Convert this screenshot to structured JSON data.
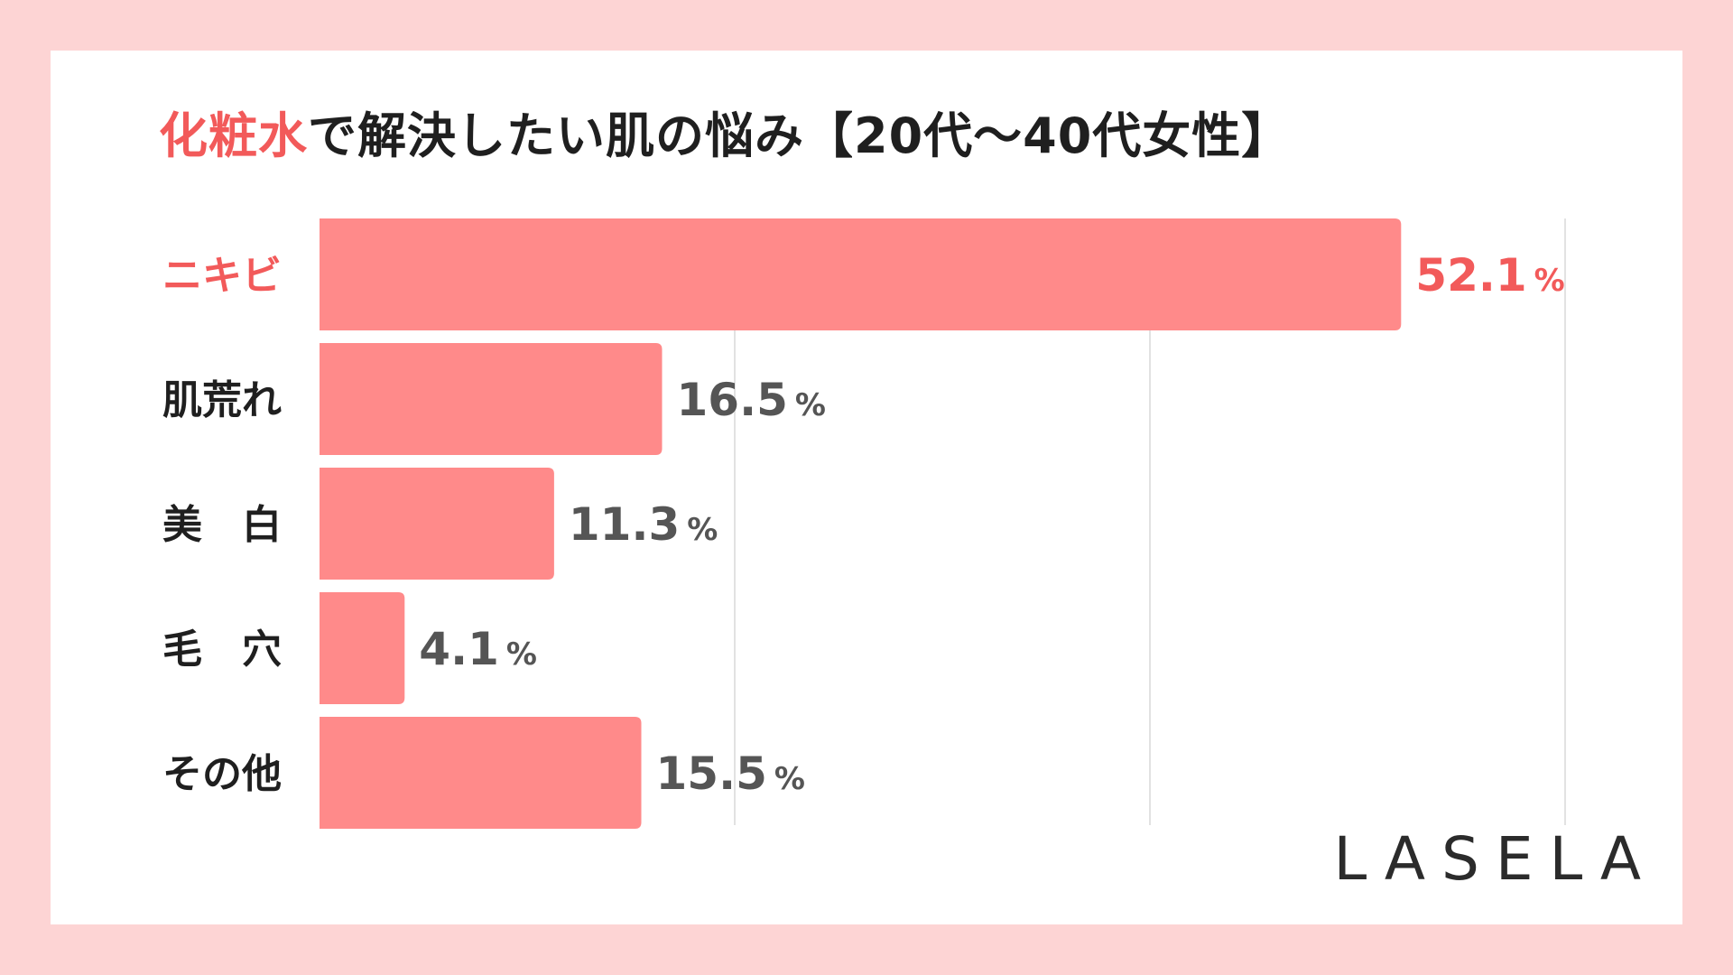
{
  "colors": {
    "background": "#fdd4d4",
    "card": "#ffffff",
    "bar": "#ff8a8a",
    "highlight": "#f25a5a",
    "value_text": "#555555",
    "label_text": "#1f1f1f",
    "grid": "#d9d9d9"
  },
  "title": {
    "highlight": "化粧水",
    "rest": "で解決したい肌の悩み【20代〜40代女性】"
  },
  "chart_data": {
    "type": "bar",
    "orientation": "horizontal",
    "title": "化粧水で解決したい肌の悩み【20代〜40代女性】",
    "categories": [
      "ニキビ",
      "肌荒れ",
      "美　白",
      "毛　穴",
      "その他"
    ],
    "values": [
      52.1,
      16.5,
      11.3,
      4.1,
      15.5
    ],
    "value_labels": [
      "52.1",
      "16.5",
      "11.3",
      "4.1",
      "15.5"
    ],
    "unit": "%",
    "highlight_index": 0,
    "xlim": [
      0,
      60
    ],
    "gridlines": [
      20,
      40,
      60
    ],
    "grid": true,
    "legend": "none"
  },
  "logo": "LASELA"
}
